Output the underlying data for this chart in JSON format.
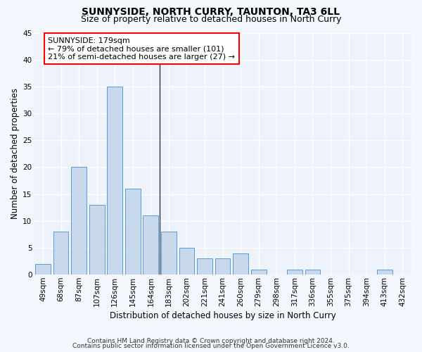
{
  "title": "SUNNYSIDE, NORTH CURRY, TAUNTON, TA3 6LL",
  "subtitle": "Size of property relative to detached houses in North Curry",
  "xlabel": "Distribution of detached houses by size in North Curry",
  "ylabel": "Number of detached properties",
  "categories": [
    "49sqm",
    "68sqm",
    "87sqm",
    "107sqm",
    "126sqm",
    "145sqm",
    "164sqm",
    "183sqm",
    "202sqm",
    "221sqm",
    "241sqm",
    "260sqm",
    "279sqm",
    "298sqm",
    "317sqm",
    "336sqm",
    "355sqm",
    "375sqm",
    "394sqm",
    "413sqm",
    "432sqm"
  ],
  "values": [
    2,
    8,
    20,
    13,
    35,
    16,
    11,
    8,
    5,
    3,
    3,
    4,
    1,
    0,
    1,
    1,
    0,
    0,
    0,
    1,
    0
  ],
  "bar_color": "#c8d9ee",
  "bar_edge_color": "#5b9bd5",
  "vline_pos": 6.5,
  "ylim": [
    0,
    45
  ],
  "yticks": [
    0,
    5,
    10,
    15,
    20,
    25,
    30,
    35,
    40,
    45
  ],
  "bg_color": "#eef2fa",
  "grid_color": "#ffffff",
  "fig_bg_color": "#f5f7ff",
  "annotation_line1": "SUNNYSIDE: 179sqm",
  "annotation_line2": "← 79% of detached houses are smaller (101)",
  "annotation_line3": "21% of semi-detached houses are larger (27) →",
  "footer1": "Contains HM Land Registry data © Crown copyright and database right 2024.",
  "footer2": "Contains public sector information licensed under the Open Government Licence v3.0.",
  "title_fontsize": 10,
  "subtitle_fontsize": 9,
  "axis_label_fontsize": 8.5,
  "tick_fontsize": 7.5,
  "annotation_fontsize": 8,
  "footer_fontsize": 6.5
}
